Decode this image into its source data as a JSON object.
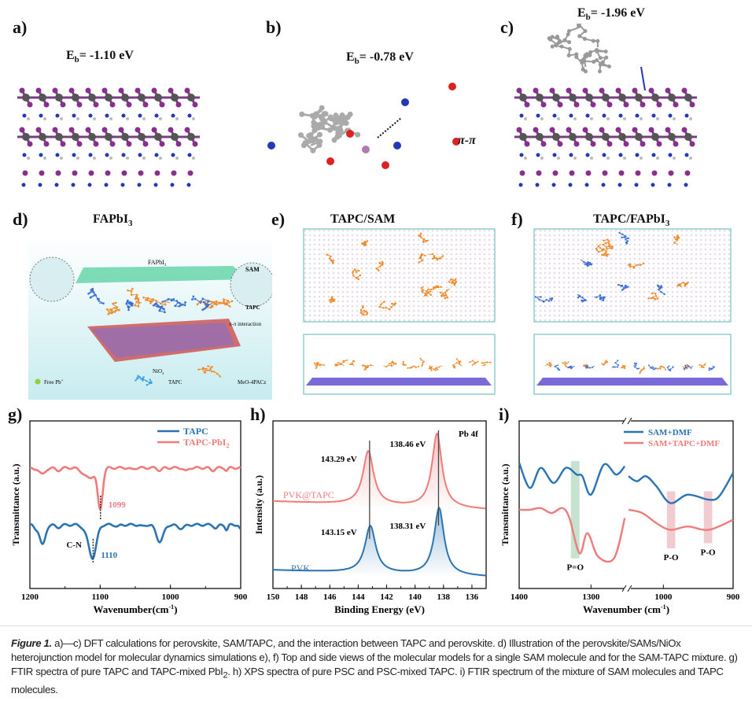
{
  "panels": {
    "a": {
      "label": "a)",
      "energy_prefix": "E",
      "energy_sub": "b",
      "energy_value": "= -1.10 eV"
    },
    "b": {
      "label": "b)",
      "energy_prefix": "E",
      "energy_sub": "b",
      "energy_value": "= -0.78 eV",
      "annotation": "π-π"
    },
    "c": {
      "label": "c)",
      "energy_prefix": "E",
      "energy_sub": "b",
      "energy_value": "= -1.96 eV"
    },
    "d": {
      "label": "d)",
      "title": "FAPbI",
      "title_sub": "3",
      "labels": {
        "fapbi": "FAPbI",
        "fapbi_sub": "3",
        "sam": "SAM",
        "tapc": "TAPC",
        "pi": "π-π interaction",
        "niox": "NiO",
        "niox_sub": "x",
        "free_pb": "Free Pb",
        "free_pb_sup": "+",
        "legend_tapc": "TAPC",
        "legend_meo": "MeO-4PACz"
      }
    },
    "e": {
      "label": "e)",
      "title": "TAPC/SAM"
    },
    "f": {
      "label": "f)",
      "title": "TAPC/FAPbI",
      "title_sub": "3"
    },
    "g": {
      "label": "g)"
    },
    "h": {
      "label": "h)"
    },
    "i": {
      "label": "i)"
    }
  },
  "colors": {
    "blue": "#2a74b3",
    "red": "#f07b7b",
    "green_band": "#9fd0b0",
    "red_band": "#e8a9b0",
    "panel_border": "#8ecfcf"
  },
  "chart_data": [
    {
      "id": "g",
      "type": "line",
      "xlabel": "Wavenumber(cm",
      "xlabel_sup": "-1",
      "xlabel_end": ")",
      "ylabel": "Transmittance (a.u.)",
      "xlim": [
        1200,
        900
      ],
      "ylim": [
        0,
        1
      ],
      "xticks": [
        1200,
        1100,
        1000,
        900
      ],
      "legend": {
        "placement": "top-right",
        "entries": [
          "TAPC",
          "TAPC-PbI",
          "2"
        ]
      },
      "series": [
        {
          "name": "TAPC",
          "color": "#2a74b3",
          "baseline": 0.38,
          "peaks": [
            [
              1192,
              0.02,
              3
            ],
            [
              1182,
              0.12,
              4
            ],
            [
              1160,
              0.015,
              4
            ],
            [
              1110,
              0.17,
              5
            ],
            [
              1117,
              0.05,
              6
            ],
            [
              1075,
              0.01,
              3
            ],
            [
              1040,
              0.01,
              3
            ],
            [
              1015,
              0.1,
              5
            ],
            [
              985,
              0.02,
              5
            ],
            [
              935,
              0.02,
              3
            ],
            [
              920,
              0.03,
              2
            ],
            [
              900,
              0.03,
              2
            ]
          ]
        },
        {
          "name": "TAPC-PbI2",
          "color": "#f07b7b",
          "baseline": 0.72,
          "peaks": [
            [
              1195,
              0.01,
              3
            ],
            [
              1182,
              0.04,
              4
            ],
            [
              1160,
              0.015,
              4
            ],
            [
              1116,
              0.06,
              8
            ],
            [
              1100,
              0.24,
              3.5
            ],
            [
              1055,
              0.01,
              3
            ],
            [
              1015,
              0.015,
              3
            ],
            [
              978,
              0.02,
              3
            ],
            [
              940,
              0.015,
              3
            ],
            [
              920,
              0.015,
              2
            ]
          ]
        }
      ],
      "annotations": [
        {
          "text": "1099",
          "x": 1099,
          "color": "#f07b7b"
        },
        {
          "text": "1110",
          "x": 1110,
          "color": "#2a74b3"
        },
        {
          "text": "C-N",
          "x": 1110,
          "color": "#111111"
        }
      ]
    },
    {
      "id": "h",
      "type": "line",
      "xlabel": "Binding Energy (eV)",
      "ylabel": "Intensity (a.u.)",
      "xlim": [
        150,
        135
      ],
      "ylim": [
        0,
        1
      ],
      "xticks": [
        150,
        148,
        146,
        144,
        142,
        140,
        138,
        136
      ],
      "corner_label": "Pb 4f",
      "series": [
        {
          "name": "PVK@TAPC",
          "color": "#f07b7b",
          "baseline": [
            0.52,
            0.47
          ],
          "peaks": [
            [
              143.29,
              0.32,
              0.45
            ],
            [
              138.46,
              0.44,
              0.42
            ]
          ]
        },
        {
          "name": "PVK",
          "color": "#2a74b3",
          "baseline": [
            0.11,
            0.07
          ],
          "peaks": [
            [
              143.15,
              0.28,
              0.45
            ],
            [
              138.31,
              0.4,
              0.42
            ]
          ]
        }
      ],
      "annotations": [
        {
          "text": "143.29 eV",
          "x": 143.29
        },
        {
          "text": "138.46 eV",
          "x": 138.46
        },
        {
          "text": "143.15 eV",
          "x": 143.15
        },
        {
          "text": "138.31 eV",
          "x": 138.31
        }
      ]
    },
    {
      "id": "i",
      "type": "line",
      "xlabel": "Wavenumber (cm",
      "xlabel_sup": "-1",
      "xlabel_end": ")",
      "ylabel": "Transmittance (a.u.)",
      "xlim_segments": [
        [
          1400,
          1250
        ],
        [
          1050,
          900
        ]
      ],
      "ylim": [
        0,
        1
      ],
      "xticks": [
        1400,
        1300,
        1000,
        900
      ],
      "axis_break": true,
      "legend": {
        "placement": "top-right",
        "entries": [
          "SAM+DMF",
          "SAM+TAPC+DMF"
        ]
      },
      "series": [
        {
          "name": "SAM+DMF",
          "color": "#2a74b3",
          "segments": [
            [
              [
                1400,
                0.75
              ],
              [
                1385,
                0.6
              ],
              [
                1370,
                0.72
              ],
              [
                1352,
                0.63
              ],
              [
                1335,
                0.72
              ],
              [
                1320,
                0.68
              ],
              [
                1312,
                0.67
              ],
              [
                1300,
                0.56
              ],
              [
                1282,
                0.74
              ],
              [
                1265,
                0.68
              ],
              [
                1253,
                0.73
              ]
            ],
            [
              [
                1050,
                0.67
              ],
              [
                1038,
                0.64
              ],
              [
                1025,
                0.67
              ],
              [
                1010,
                0.61
              ],
              [
                990,
                0.51
              ],
              [
                965,
                0.56
              ],
              [
                935,
                0.53
              ],
              [
                920,
                0.55
              ],
              [
                900,
                0.69
              ]
            ]
          ]
        },
        {
          "name": "SAM+TAPC+DMF",
          "color": "#f07b7b",
          "segments": [
            [
              [
                1400,
                0.47
              ],
              [
                1385,
                0.47
              ],
              [
                1370,
                0.48
              ],
              [
                1355,
                0.45
              ],
              [
                1340,
                0.48
              ],
              [
                1330,
                0.42
              ],
              [
                1316,
                0.21
              ],
              [
                1305,
                0.33
              ],
              [
                1290,
                0.19
              ],
              [
                1268,
                0.18
              ],
              [
                1253,
                0.42
              ]
            ],
            [
              [
                1050,
                0.47
              ],
              [
                1030,
                0.45
              ],
              [
                1010,
                0.39
              ],
              [
                990,
                0.35
              ],
              [
                965,
                0.37
              ],
              [
                935,
                0.35
              ],
              [
                900,
                0.41
              ]
            ]
          ]
        }
      ],
      "bands": [
        {
          "label": "P=O",
          "x": [
            1328,
            1316
          ],
          "y": [
            0.18,
            0.76
          ],
          "color": "#9fd0b0"
        },
        {
          "label": "P-O",
          "x": [
            995,
            983
          ],
          "y": [
            0.24,
            0.58
          ],
          "color": "#e8a9b0"
        },
        {
          "label": "P-O",
          "x": [
            942,
            930
          ],
          "y": [
            0.27,
            0.58
          ],
          "color": "#e8a9b0"
        }
      ]
    }
  ],
  "caption": {
    "label": "Figure 1.",
    "text1": " a)—c) DFT calculations for perovskite, SAM/TAPC, and the interaction between TAPC and perovskite. d) Illustration of the perovskite/SAMs/NiOx heterojunction model for molecular dynamics simulations e), f) Top and side views of the molecular models for a single SAM molecule and for the SAM-TAPC mixture. g) FTIR spectra of pure TAPC and TAPC-mixed PbI",
    "sub": "2",
    "text2": ". h) XPS spectra of pure PSC and PSC-mixed TAPC. i) FTIR spectrum of the mixture of SAM molecules and TAPC molecules."
  }
}
